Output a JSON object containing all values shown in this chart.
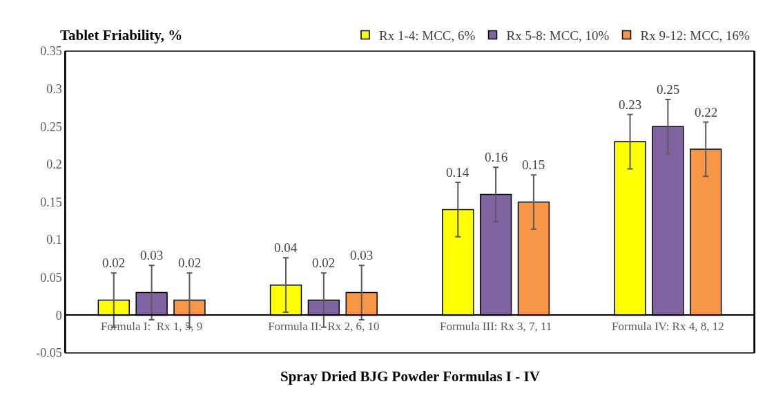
{
  "chart_data": {
    "type": "bar",
    "ylabel": "Tablet Friability, %",
    "xlabel": "Spray Dried BJG Powder Formulas I - IV",
    "categories": [
      "Formula I:  Rx 1, 5, 9",
      "Formula II:  Rx 2, 6, 10",
      "Formula III: Rx 3, 7, 11",
      "Formula IV: Rx 4, 8, 12"
    ],
    "series": [
      {
        "name": "Rx 1-4: MCC, 6%",
        "color": "#ffff00",
        "values": [
          0.02,
          0.04,
          0.14,
          0.23
        ],
        "errors": [
          0.036,
          0.036,
          0.036,
          0.036
        ]
      },
      {
        "name": "Rx 5-8: MCC, 10%",
        "color": "#8064a2",
        "values": [
          0.03,
          0.02,
          0.16,
          0.25
        ],
        "errors": [
          0.036,
          0.036,
          0.036,
          0.036
        ]
      },
      {
        "name": "Rx 9-12: MCC, 16%",
        "color": "#f79646",
        "values": [
          0.02,
          0.03,
          0.15,
          0.22
        ],
        "errors": [
          0.036,
          0.036,
          0.036,
          0.036
        ]
      }
    ],
    "ylim": [
      -0.05,
      0.35
    ],
    "yticks": [
      -0.05,
      0,
      0.05,
      0.1,
      0.15,
      0.2,
      0.25,
      0.3,
      0.35
    ],
    "data_labels": true,
    "grid": false,
    "legend": "top right"
  }
}
